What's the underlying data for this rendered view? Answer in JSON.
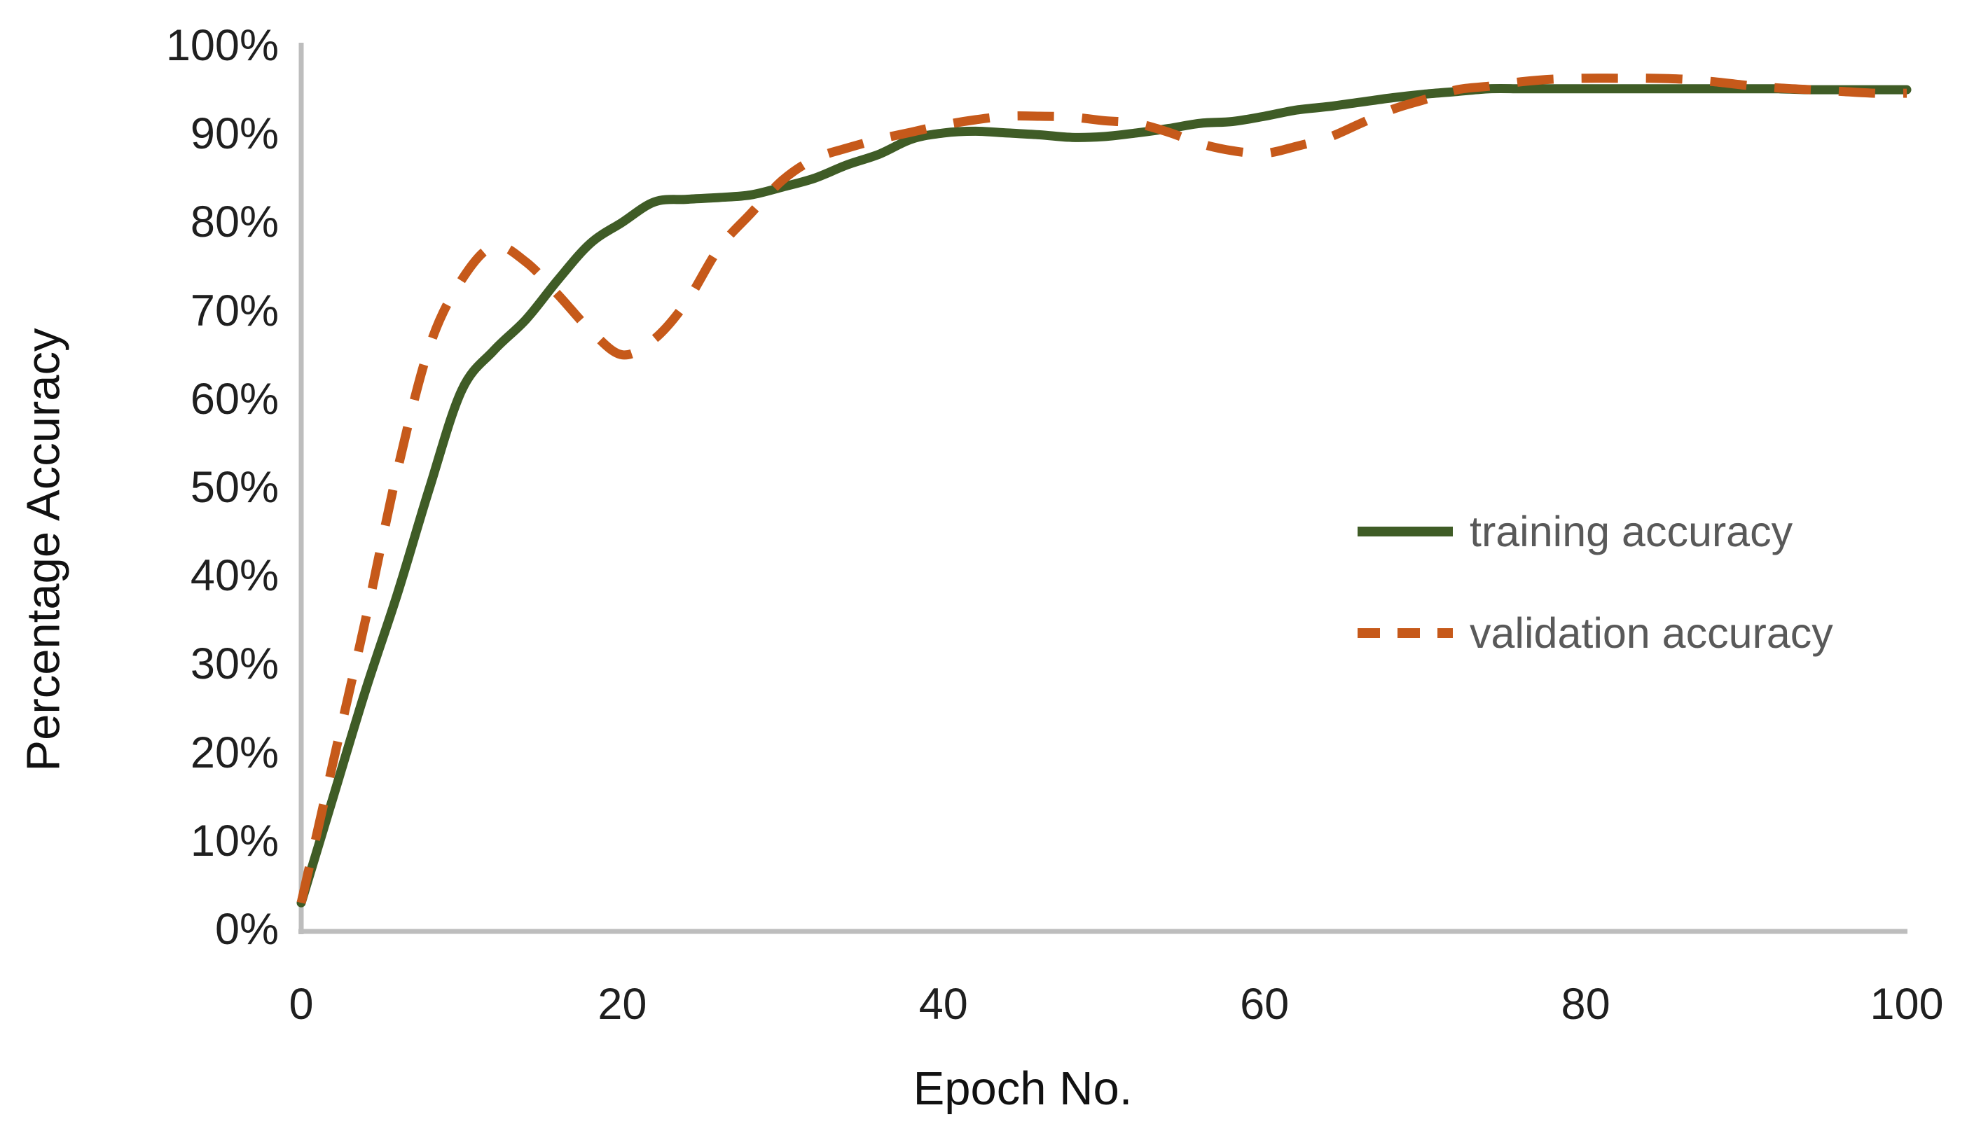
{
  "chart_data": {
    "type": "line",
    "title": "",
    "xlabel": "Epoch No.",
    "ylabel": "Percentage Accuracy",
    "xlim": [
      0,
      100
    ],
    "ylim": [
      0,
      100
    ],
    "grid": false,
    "legend_position": "center-right",
    "x_ticks": [
      0,
      20,
      40,
      60,
      80,
      100
    ],
    "y_ticks": [
      {
        "value": 0,
        "label": "0%"
      },
      {
        "value": 10,
        "label": "10%"
      },
      {
        "value": 20,
        "label": "20%"
      },
      {
        "value": 30,
        "label": "30%"
      },
      {
        "value": 40,
        "label": "40%"
      },
      {
        "value": 50,
        "label": "50%"
      },
      {
        "value": 60,
        "label": "60%"
      },
      {
        "value": 70,
        "label": "70%"
      },
      {
        "value": 80,
        "label": "80%"
      },
      {
        "value": 90,
        "label": "90%"
      },
      {
        "value": 100,
        "label": "100%"
      }
    ],
    "x": [
      0,
      2,
      4,
      6,
      8,
      10,
      12,
      14,
      16,
      18,
      20,
      22,
      24,
      26,
      28,
      30,
      32,
      34,
      36,
      38,
      40,
      42,
      44,
      46,
      48,
      50,
      52,
      54,
      56,
      58,
      60,
      62,
      64,
      66,
      68,
      70,
      72,
      74,
      76,
      78,
      80,
      82,
      84,
      86,
      88,
      90,
      92,
      94,
      96,
      98,
      100
    ],
    "series": [
      {
        "name": "training accuracy",
        "style": "solid",
        "color": "#3f5c26",
        "values": [
          3,
          15,
          27,
          38,
          50,
          61,
          65.5,
          69,
          73.5,
          77.6,
          80,
          82.3,
          82.6,
          82.8,
          83.1,
          84,
          85,
          86.5,
          87.7,
          89.4,
          90.1,
          90.3,
          90.1,
          89.9,
          89.6,
          89.7,
          90.1,
          90.6,
          91.2,
          91.4,
          92,
          92.7,
          93.1,
          93.6,
          94.1,
          94.5,
          94.8,
          95.1,
          95.1,
          95.1,
          95.1,
          95.1,
          95.1,
          95.1,
          95.1,
          95.1,
          95.1,
          95,
          95,
          95,
          95
        ]
      },
      {
        "name": "validation accuracy",
        "style": "dashed",
        "color": "#c6591a",
        "values": [
          3,
          19,
          35,
          52,
          66,
          73.5,
          77.3,
          75.5,
          71.8,
          67.8,
          65,
          66.8,
          71,
          77,
          81,
          84.8,
          87.2,
          88.4,
          89.4,
          90.2,
          91,
          91.6,
          92,
          92,
          91.9,
          91.5,
          91.2,
          90.2,
          88.9,
          88.1,
          87.8,
          88.6,
          89.6,
          91.2,
          92.8,
          93.9,
          95,
          95.4,
          95.9,
          96.2,
          96.3,
          96.3,
          96.3,
          96.2,
          95.9,
          95.5,
          95.2,
          95,
          94.8,
          94.6,
          94.6
        ]
      }
    ]
  },
  "legend": {
    "training_label": "training accuracy",
    "validation_label": "validation accuracy"
  },
  "colors": {
    "training_green": "#3f5c26",
    "validation_orange": "#c6591a",
    "axis_line": "#bdbdbd",
    "tick_text": "#1f1f1f",
    "legend_text": "#595959",
    "background": "#ffffff"
  }
}
